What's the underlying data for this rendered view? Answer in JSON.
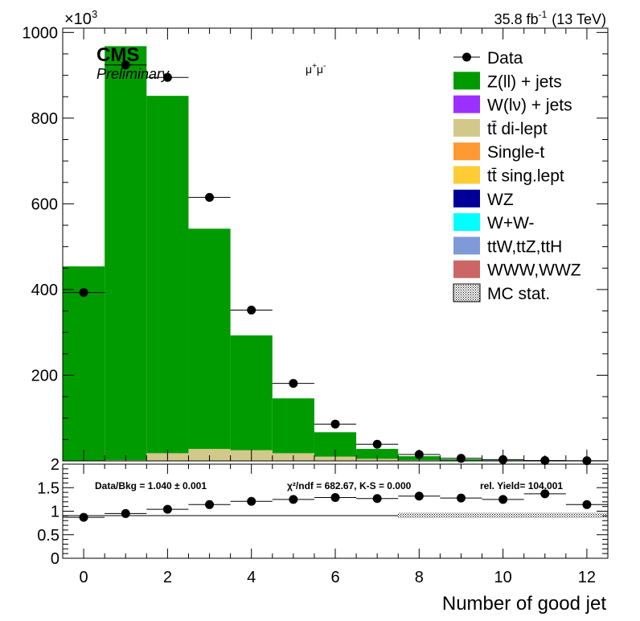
{
  "header": {
    "multiplier": "×10",
    "multiplier_exp": "3",
    "lumi": "35.8 fb",
    "lumi_exp": "-1",
    "energy": "(13 TeV)",
    "cms": "CMS",
    "preliminary": "Preliminary",
    "channel": "μ",
    "channel_sup1": "+",
    "channel_mid": "μ",
    "channel_sup2": "-"
  },
  "chart_data": {
    "type": "bar",
    "xlabel": "Number of good jet",
    "ylabel": "",
    "xlim": [
      -0.5,
      12.5
    ],
    "ylim": [
      0,
      1000
    ],
    "yticks": [
      200,
      400,
      600,
      800,
      1000
    ],
    "xticks": [
      0,
      2,
      4,
      6,
      8,
      10,
      12
    ],
    "bins": [
      0,
      1,
      2,
      3,
      4,
      5,
      6,
      7,
      8,
      9,
      10,
      11,
      12
    ],
    "series": [
      {
        "name": "tt̄ di-lept",
        "color": "#d2c88a",
        "values": [
          1,
          2,
          18,
          28,
          25,
          18,
          10,
          5,
          2,
          1,
          0.5,
          0.2,
          0.1
        ]
      },
      {
        "name": "Z(ll) + jets",
        "color": "#009b00",
        "values": [
          453,
          966,
          834,
          514,
          268,
          128,
          57,
          23,
          9,
          3,
          1,
          0.4,
          0.2
        ]
      }
    ],
    "data_points": {
      "name": "Data",
      "values": [
        393,
        924,
        895,
        615,
        352,
        181,
        86,
        39,
        15,
        6,
        3,
        1,
        0.5
      ]
    },
    "legend": {
      "placement": "top-right",
      "entries": [
        {
          "label": "Data",
          "kind": "marker"
        },
        {
          "label": "Z(ll) + jets",
          "color": "#009b00"
        },
        {
          "label": "W(lν) + jets",
          "color": "#9b30ff"
        },
        {
          "label": "tt̄ di-lept",
          "color": "#d2c88a"
        },
        {
          "label": "Single-t",
          "color": "#ff9933"
        },
        {
          "label": "tt̄ sing.lept",
          "color": "#ffcc33"
        },
        {
          "label": "WZ",
          "color": "#000099"
        },
        {
          "label": "W+W-",
          "color": "#00ffff"
        },
        {
          "label": "ttW,ttZ,ttH",
          "color": "#7f99d9"
        },
        {
          "label": "WWW,WWZ",
          "color": "#cc6666"
        },
        {
          "label": "MC stat.",
          "kind": "hatch"
        }
      ]
    },
    "ratio": {
      "ylim": [
        0,
        2
      ],
      "yticks": [
        "0",
        "0.5",
        "1",
        "1.5",
        "2"
      ],
      "values": [
        0.87,
        0.95,
        1.04,
        1.14,
        1.21,
        1.25,
        1.29,
        1.27,
        1.32,
        1.28,
        1.25,
        1.37,
        1.14
      ],
      "text_databkg": "Data/Bkg = 1.040 ± 0.001",
      "text_chi2": "χ²/ndf = 682.67,   K-S = 0.000",
      "text_yield": "rel. Yield= 104.001"
    }
  }
}
